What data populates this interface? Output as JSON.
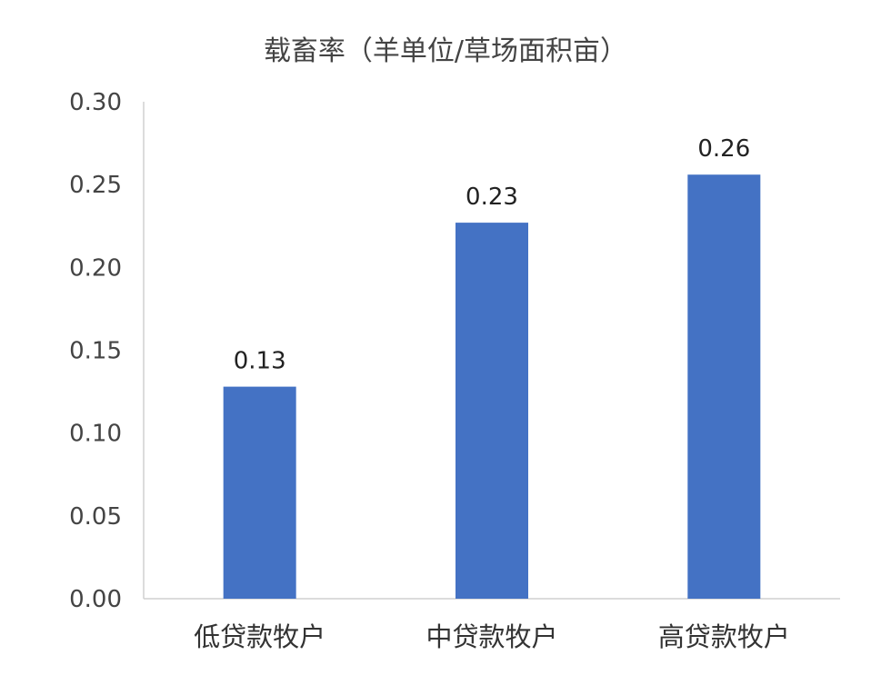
{
  "chart_data": {
    "type": "bar",
    "title": "载畜率（羊单位/草场面积亩）",
    "categories": [
      "低贷款牧户",
      "中贷款牧户",
      "高贷款牧户"
    ],
    "values": [
      0.128,
      0.227,
      0.256
    ],
    "data_labels": [
      "0.13",
      "0.23",
      "0.26"
    ],
    "y_ticks": [
      "0.00",
      "0.05",
      "0.10",
      "0.15",
      "0.20",
      "0.25",
      "0.30"
    ],
    "ylim": [
      0,
      0.3
    ],
    "grid": false,
    "legend": "none",
    "colors": {
      "bar": "#4472C4",
      "axis": "#D0D0D0",
      "text": "#444444"
    }
  }
}
